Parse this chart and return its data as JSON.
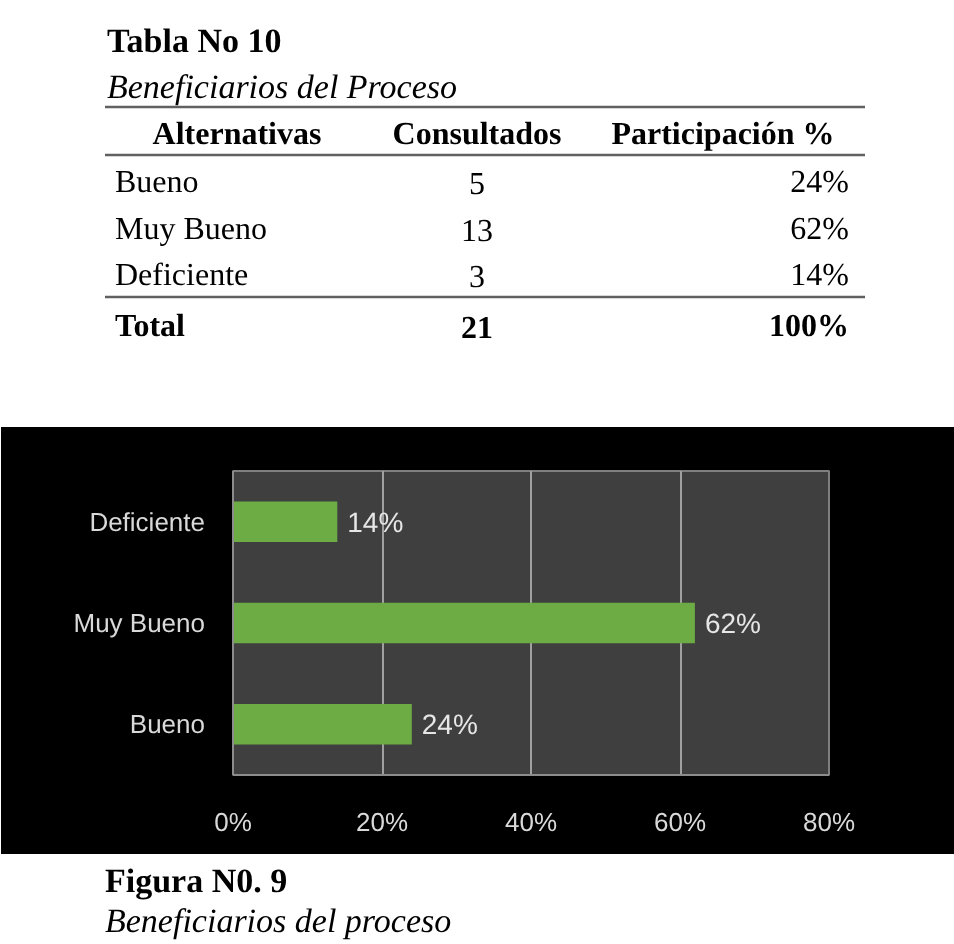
{
  "chart_data": [
    {
      "type": "other",
      "title": "Tabla No 10",
      "subtitle": "Beneficiarios del Proceso",
      "annotations": [
        "Alternativas",
        "Total"
      ],
      "categories": [
        "Bueno",
        "Muy Bueno",
        "Deficiente"
      ],
      "series": [
        {
          "name": "Consultados",
          "values": [
            5,
            13,
            3
          ],
          "value_labels": [
            "5",
            "13",
            "3"
          ]
        },
        {
          "name": "Participación %",
          "values": [
            24,
            62,
            14
          ],
          "value_labels": [
            "24%",
            "62%",
            "14%"
          ]
        }
      ],
      "totals": [
        "21",
        "100%"
      ]
    },
    {
      "type": "bar",
      "orientation": "horizontal",
      "title": "Figura N0. 9",
      "subtitle": "Beneficiarios del proceso",
      "categories": [
        "Deficiente",
        "Muy Bueno",
        "Bueno"
      ],
      "values": [
        14,
        62,
        24
      ],
      "color": "#6dab45",
      "value_labels": [
        "14%",
        "62%",
        "24%"
      ],
      "xlim": [
        0,
        80
      ],
      "xticks": [
        {
          "value": 0,
          "label": "0%"
        },
        {
          "value": 20,
          "label": "20%"
        },
        {
          "value": 40,
          "label": "40%"
        },
        {
          "value": 60,
          "label": "60%"
        },
        {
          "value": 80,
          "label": "80%"
        }
      ],
      "grid": "x"
    }
  ]
}
